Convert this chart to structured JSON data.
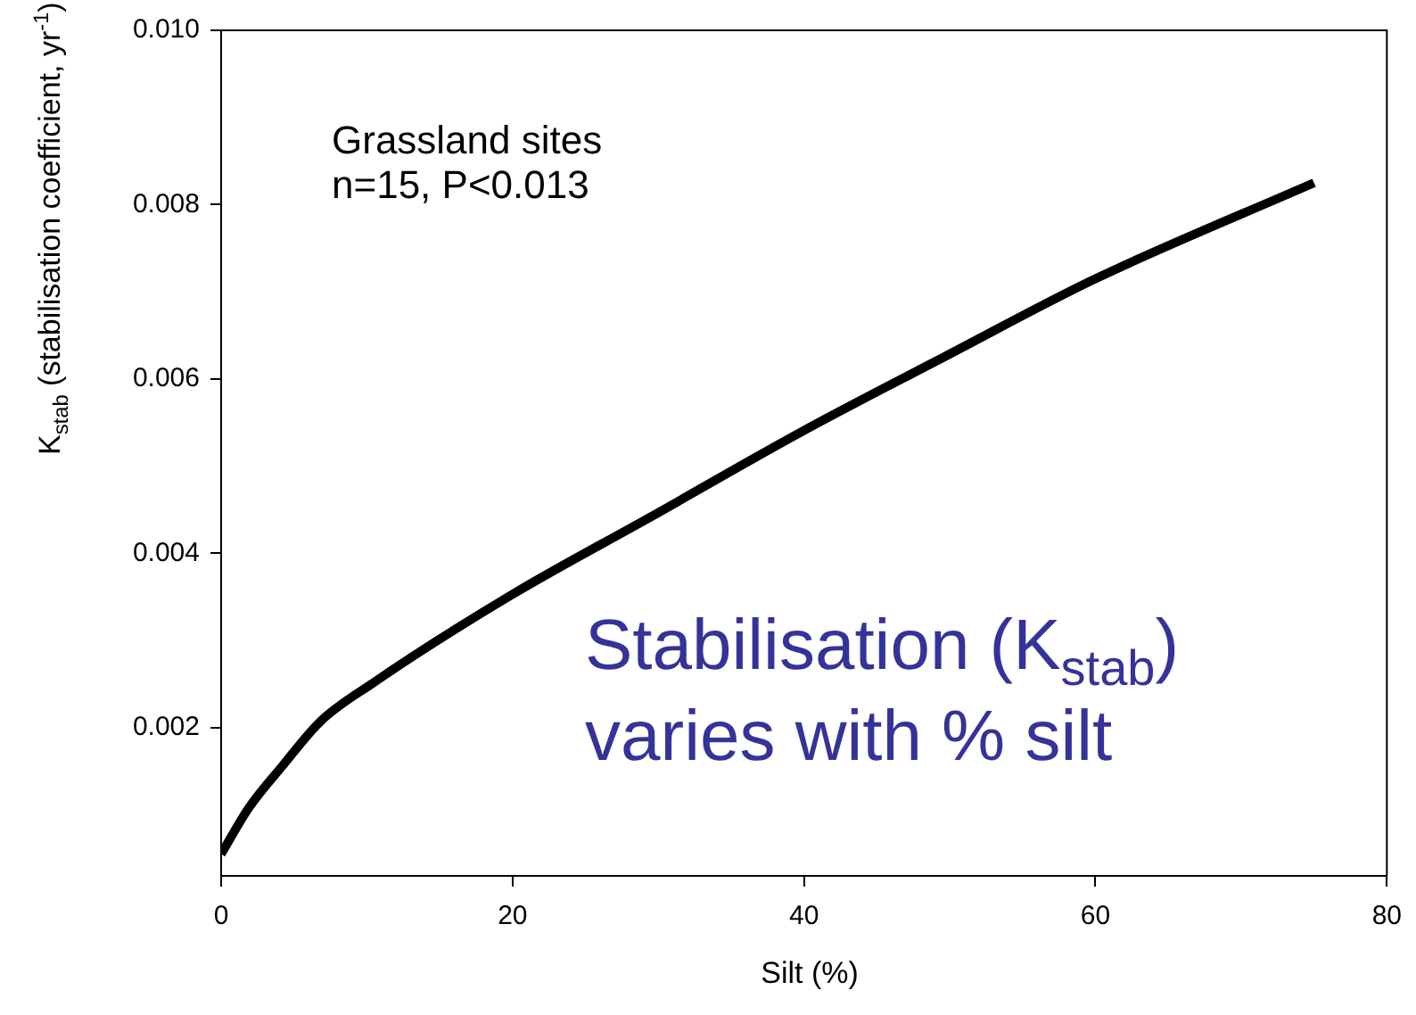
{
  "chart_data": {
    "type": "line",
    "xlabel": "Silt (%)",
    "ylabel": "K$_{stab}$ (stabilisation coefficient, yr$^{-1}$)",
    "x": [
      0,
      1.9,
      4.2,
      6.8,
      10.4,
      20,
      29.5,
      40,
      49.7,
      60,
      75
    ],
    "series": [
      {
        "color": "#000000",
        "values": [
          0.00055,
          0.00108,
          0.00156,
          0.00207,
          0.00251,
          0.00353,
          0.00442,
          0.00541,
          0.00626,
          0.00715,
          0.00825
        ]
      }
    ],
    "xlim": [
      0,
      80
    ],
    "xticks": [
      0,
      20,
      40,
      60,
      80
    ],
    "ylim": [
      0.0003,
      0.01
    ],
    "yticks": [
      {
        "value": 0.002,
        "label": "0.002"
      },
      {
        "value": 0.004,
        "label": "0.004"
      },
      {
        "value": 0.006,
        "label": "0.006"
      },
      {
        "value": 0.008,
        "label": "0.008"
      },
      {
        "value": 0.01,
        "label": "0.010"
      }
    ],
    "annotations": [
      "Grassland sites\nn=15, P<0.013",
      "Stabilisation (K$_{stab}$)\nvaries with % silt"
    ],
    "grid": false,
    "legend": false,
    "marker": "none",
    "line_style": "solid"
  }
}
